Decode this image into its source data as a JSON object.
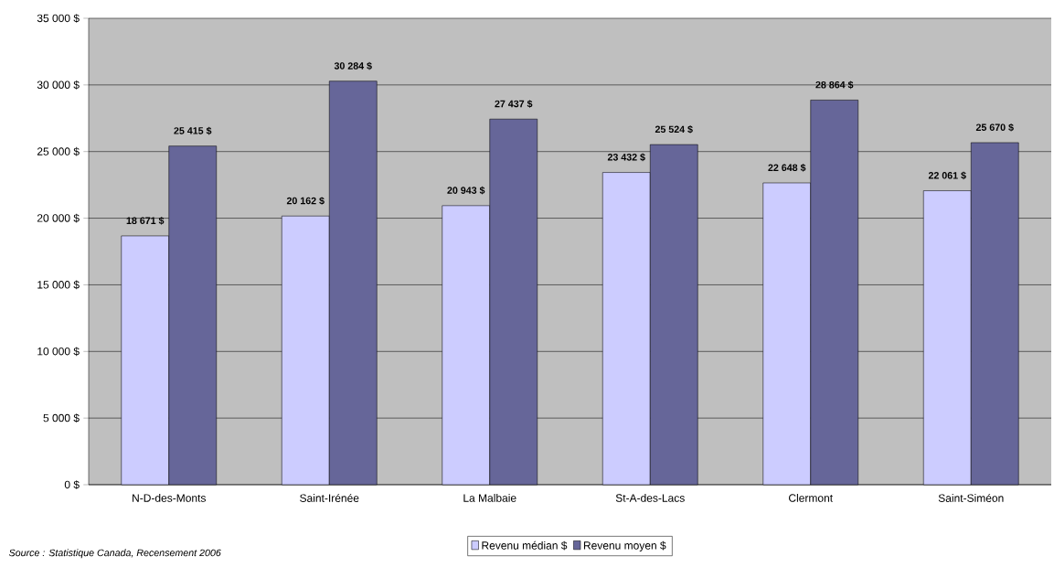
{
  "chart_data": {
    "type": "bar",
    "categories": [
      "N-D-des-Monts",
      "Saint-Irénée",
      "La Malbaie",
      "St-A-des-Lacs",
      "Clermont",
      "Saint-Siméon"
    ],
    "series": [
      {
        "name": "Revenu médian $",
        "color": "#ccccff",
        "values": [
          18671,
          20162,
          20943,
          23432,
          22648,
          22061
        ],
        "value_labels": [
          "18 671 $",
          "20 162 $",
          "20 943 $",
          "23 432 $",
          "22 648 $",
          "22 061 $"
        ]
      },
      {
        "name": "Revenu moyen $",
        "color": "#666699",
        "values": [
          25415,
          30284,
          27437,
          25524,
          28864,
          25670
        ],
        "value_labels": [
          "25 415 $",
          "30 284 $",
          "27 437 $",
          "25 524 $",
          "28 864 $",
          "25 670 $"
        ]
      }
    ],
    "ylim": [
      0,
      35000
    ],
    "yticks": [
      {
        "value": 0,
        "label": "0 $"
      },
      {
        "value": 5000,
        "label": "5 000 $"
      },
      {
        "value": 10000,
        "label": "10 000 $"
      },
      {
        "value": 15000,
        "label": "15 000 $"
      },
      {
        "value": 20000,
        "label": "20 000 $"
      },
      {
        "value": 25000,
        "label": "25 000 $"
      },
      {
        "value": 30000,
        "label": "30 000 $"
      },
      {
        "value": 35000,
        "label": "35 000 $"
      }
    ],
    "grid": "y",
    "legend": "bottom",
    "annotations": [
      "Source : Statistique Canada, Recensement 2006"
    ]
  }
}
